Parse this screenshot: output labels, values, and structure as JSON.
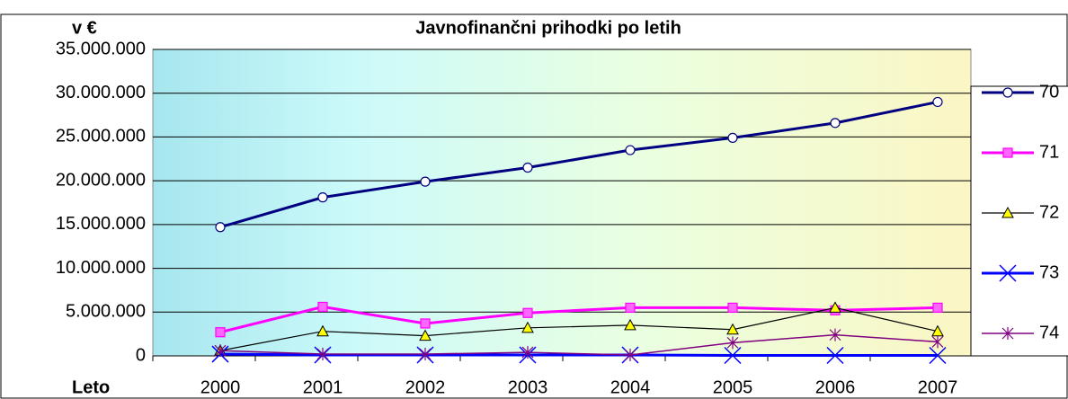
{
  "chart_data": {
    "type": "line",
    "title": "Javnofinančni prihodki po letih",
    "y_label": "v €",
    "x_label": "Leto",
    "categories": [
      "2000",
      "2001",
      "2002",
      "2003",
      "2004",
      "2005",
      "2006",
      "2007"
    ],
    "ylim": [
      0,
      35000000
    ],
    "yticks": [
      0,
      {
        "value": 5000000,
        "label": "5.000.000"
      },
      {
        "value": 10000000,
        "label": "10.000.000"
      },
      {
        "value": 15000000,
        "label": "15.000.000"
      },
      {
        "value": 20000000,
        "label": "20.000.000"
      },
      {
        "value": 25000000,
        "label": "25.000.000"
      },
      {
        "value": 30000000,
        "label": "30.000.000"
      },
      {
        "value": 35000000,
        "label": "35.000.000"
      }
    ],
    "grid": true,
    "legend": "right",
    "series": [
      {
        "name": "70",
        "color": "#000080",
        "marker": "circle",
        "values": [
          14700000,
          18100000,
          19900000,
          21500000,
          23500000,
          24900000,
          26600000,
          29000000
        ]
      },
      {
        "name": "71",
        "color": "#ff00ff",
        "marker": "square",
        "values": [
          2700000,
          5600000,
          3700000,
          4900000,
          5500000,
          5500000,
          5200000,
          5500000
        ]
      },
      {
        "name": "72",
        "color": "#000000",
        "marker": "triangle",
        "values": [
          600000,
          2800000,
          2300000,
          3200000,
          3500000,
          3000000,
          5500000,
          2800000
        ]
      },
      {
        "name": "73",
        "color": "#0000ff",
        "marker": "x",
        "values": [
          200000,
          100000,
          100000,
          100000,
          100000,
          50000,
          50000,
          50000
        ]
      },
      {
        "name": "74",
        "color": "#800080",
        "marker": "asterisk",
        "values": [
          600000,
          200000,
          200000,
          400000,
          100000,
          1500000,
          2400000,
          1600000
        ]
      }
    ]
  }
}
